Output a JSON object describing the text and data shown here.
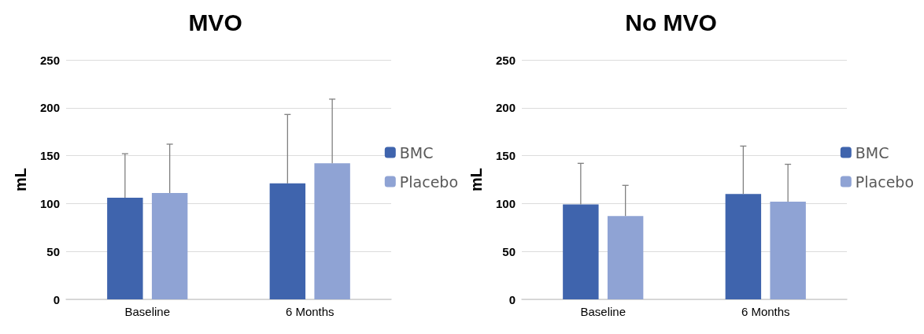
{
  "chart_data": [
    {
      "type": "bar",
      "title": "MVO",
      "ylabel": "mL",
      "categories": [
        "Baseline",
        "6 Months"
      ],
      "series": [
        {
          "name": "BMC",
          "color": "#3f64ad",
          "values": [
            106,
            121
          ],
          "errors": [
            [
              106,
              152
            ],
            [
              121,
              193
            ]
          ]
        },
        {
          "name": "Placebo",
          "color": "#8fa3d4",
          "values": [
            111,
            142
          ],
          "errors": [
            [
              111,
              162
            ],
            [
              142,
              209
            ]
          ]
        }
      ],
      "ylim": [
        0,
        250
      ],
      "yticks": [
        0,
        50,
        100,
        150,
        200,
        250
      ],
      "grid": "y",
      "legend": "right"
    },
    {
      "type": "bar",
      "title": "No MVO",
      "ylabel": "mL",
      "categories": [
        "Baseline",
        "6 Months"
      ],
      "series": [
        {
          "name": "BMC",
          "color": "#3f64ad",
          "values": [
            99,
            110
          ],
          "errors": [
            [
              99,
              142
            ],
            [
              110,
              160
            ]
          ]
        },
        {
          "name": "Placebo",
          "color": "#8fa3d4",
          "values": [
            87,
            102
          ],
          "errors": [
            [
              87,
              119
            ],
            [
              102,
              141
            ]
          ]
        }
      ],
      "ylim": [
        0,
        250
      ],
      "yticks": [
        0,
        50,
        100,
        150,
        200,
        250
      ],
      "grid": "y",
      "legend": "right"
    }
  ]
}
